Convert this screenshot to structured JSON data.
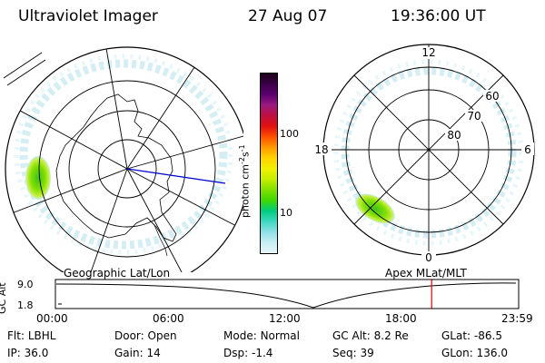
{
  "header": {
    "instrument": "Ultraviolet Imager",
    "date": "27 Aug 07",
    "time": "19:36:00 UT"
  },
  "colorbar": {
    "unit_label": "photon cm",
    "unit_sup1": "-2",
    "unit_s": "s",
    "unit_sup2": "-1",
    "ticks": [
      {
        "label": "100",
        "value": 100
      },
      {
        "label": "10",
        "value": 10
      }
    ],
    "colors": [
      "#1a0016",
      "#3b0048",
      "#5c0070",
      "#9a1a80",
      "#c01040",
      "#e01010",
      "#ff5000",
      "#ff9a00",
      "#ffd200",
      "#f0f000",
      "#c8ee00",
      "#80e000",
      "#40d800",
      "#00cc80",
      "#40d8c0",
      "#90e0e8",
      "#c8eef4",
      "#e6f6fa"
    ]
  },
  "left_map": {
    "caption": "Geographic Lat/Lon"
  },
  "right_map": {
    "caption": "Apex MLat/MLT",
    "mlt_labels": {
      "top": "12",
      "left": "18",
      "right": "6",
      "bottom": "0"
    },
    "lat_labels": [
      "60",
      "70",
      "80"
    ]
  },
  "altitude_plot": {
    "ylabel": "GC Alt",
    "yticks": [
      "9.0",
      "1.8"
    ],
    "xticks": [
      "00:00",
      "06:00",
      "12:00",
      "18:00",
      "23:59"
    ],
    "current_time_hours": 19.6
  },
  "status": {
    "rows": [
      [
        {
          "label": "Flt:",
          "value": "LBHL"
        },
        {
          "label": "Door:",
          "value": "Open"
        },
        {
          "label": "Mode:",
          "value": "Normal"
        },
        {
          "label": "GC Alt:",
          "value": "8.2 Re"
        },
        {
          "label": "GLat:",
          "value": "-86.5"
        }
      ],
      [
        {
          "label": "IP:",
          "value": "36.0"
        },
        {
          "label": "Gain:",
          "value": "14"
        },
        {
          "label": "Dsp:",
          "value": "-1.4"
        },
        {
          "label": "Seq:",
          "value": "39"
        },
        {
          "label": "GLon:",
          "value": "136.0"
        }
      ]
    ]
  }
}
